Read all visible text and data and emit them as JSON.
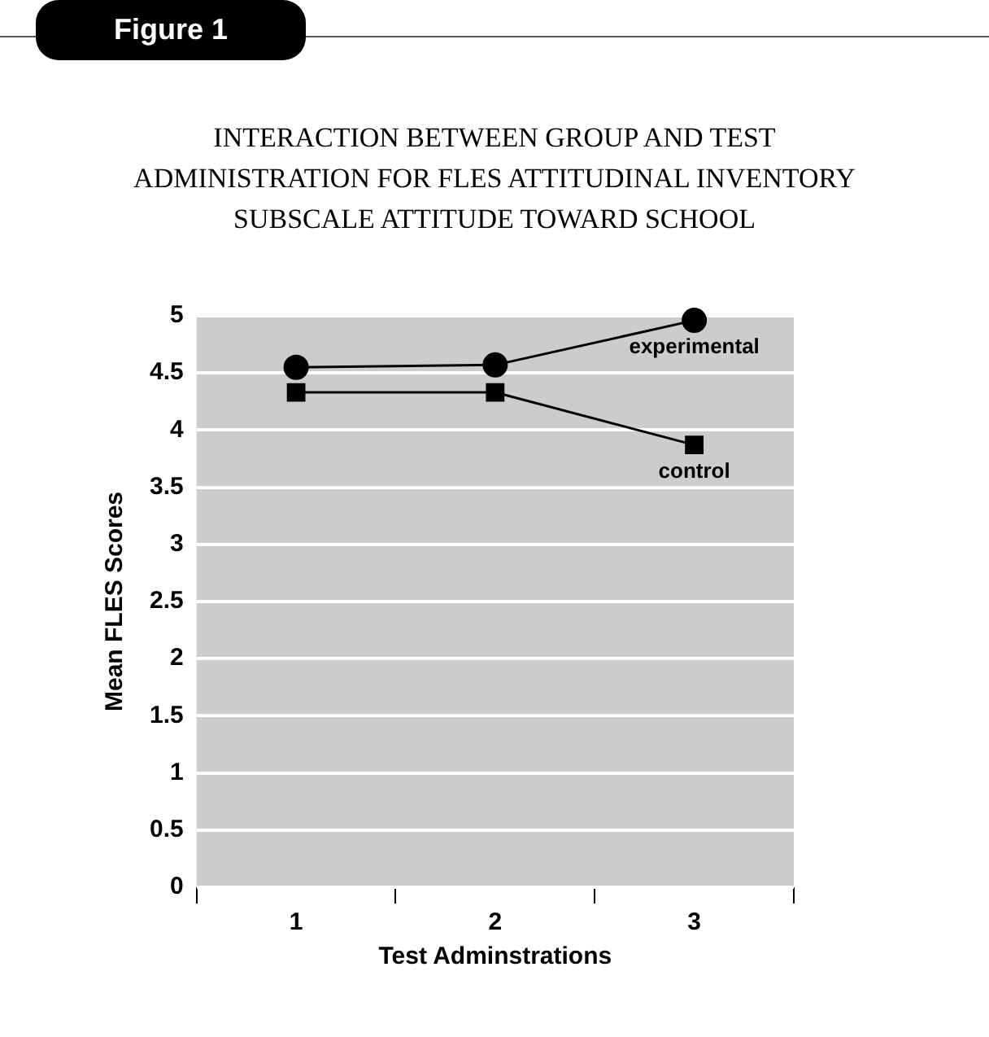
{
  "chart_data": {
    "type": "line",
    "title": "INTERACTION BETWEEN GROUP AND TEST ADMINISTRATION FOR FLES ATTITUDINAL INVENTORY SUBSCALE ATTITUDE TOWARD SCHOOL",
    "annotations": [
      "Figure 1"
    ],
    "xlabel": "Test Adminstrations",
    "ylabel": "Mean FLES Scores",
    "categories": [
      "1",
      "2",
      "3"
    ],
    "series": [
      {
        "name": "experimental",
        "color": "#000000",
        "marker": "circle",
        "values": [
          4.55,
          4.57,
          4.96
        ]
      },
      {
        "name": "control",
        "color": "#000000",
        "marker": "square",
        "values": [
          4.33,
          4.33,
          3.87
        ]
      }
    ],
    "ylim": [
      0,
      5
    ],
    "yticks": [
      0,
      0.5,
      1,
      1.5,
      2,
      2.5,
      3,
      3.5,
      4,
      4.5,
      5
    ],
    "grid": "y",
    "legend": false,
    "line_style": "solid"
  }
}
